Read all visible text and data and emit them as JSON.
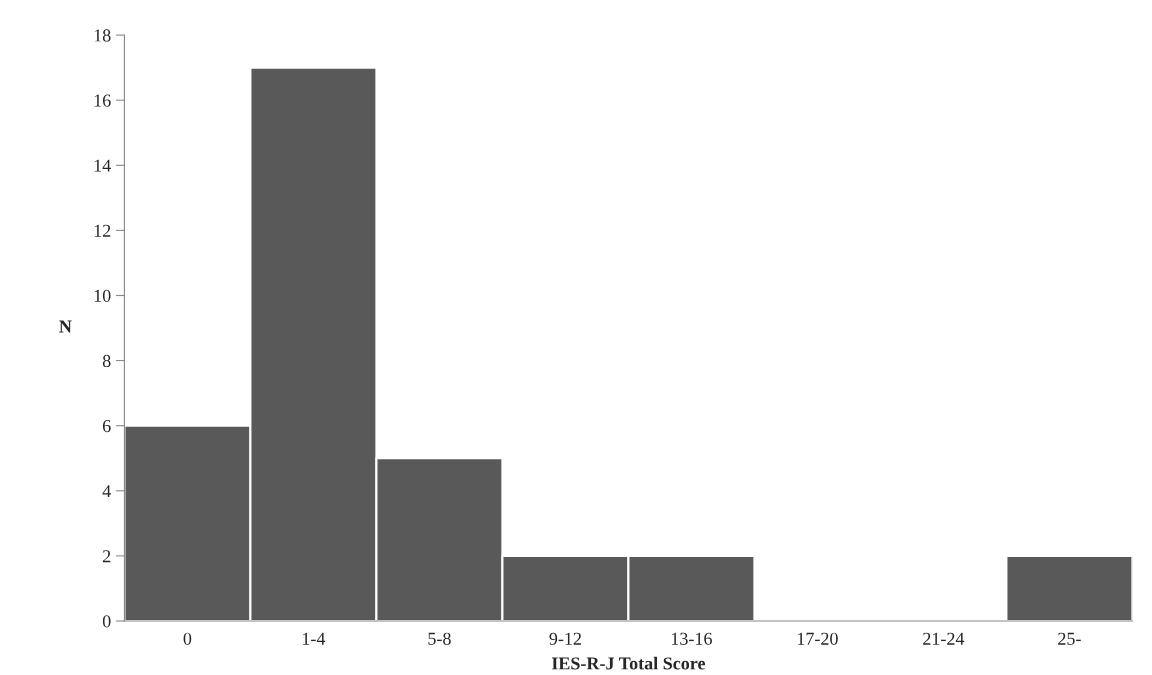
{
  "chart_data": {
    "type": "bar",
    "xlabel": "IES-R-J Total Score",
    "ylabel": "N",
    "categories": [
      "0",
      "1-4",
      "5-8",
      "9-12",
      "13-16",
      "17-20",
      "21-24",
      "25-"
    ],
    "values": [
      6,
      17,
      5,
      2,
      2,
      0,
      0,
      2
    ],
    "color": "#595959",
    "ylim": [
      0,
      18
    ],
    "yticks": [
      0,
      2,
      4,
      6,
      8,
      10,
      12,
      14,
      16,
      18
    ],
    "grid": false,
    "legend": false
  }
}
